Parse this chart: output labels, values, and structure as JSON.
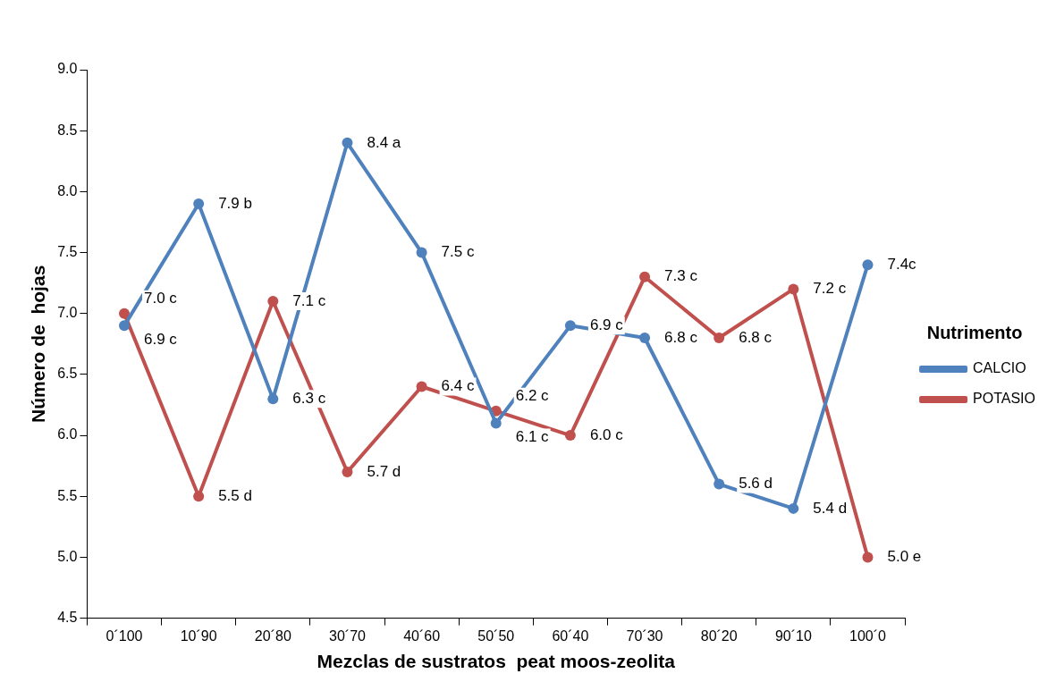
{
  "chart_data": {
    "type": "line",
    "xlabel": "Mezclas de sustratos  peat moos-zeolita",
    "ylabel": "Número de  hojas",
    "legend_title": "Nutrimento",
    "legend": "right",
    "marker": "circle",
    "line_style": "solid",
    "grid": false,
    "categories": [
      "0´100",
      "10´90",
      "20´80",
      "30´70",
      "40´60",
      "50´50",
      "60´40",
      "70´30",
      "80´20",
      "90´10",
      "100´0"
    ],
    "ylim": [
      4.5,
      9
    ],
    "yticks": [
      {
        "value": 4.5,
        "label": "4.5"
      },
      {
        "value": 5,
        "label": "5.0"
      },
      {
        "value": 5.5,
        "label": "5.5"
      },
      {
        "value": 6,
        "label": "6.0"
      },
      {
        "value": 6.5,
        "label": "6.5"
      },
      {
        "value": 7,
        "label": "7.0"
      },
      {
        "value": 7.5,
        "label": "7.5"
      },
      {
        "value": 8,
        "label": "8.0"
      },
      {
        "value": 8.5,
        "label": "8.5"
      },
      {
        "value": 9,
        "label": "9.0"
      }
    ],
    "series": [
      {
        "name": "CALCIO",
        "color": "#4f81bd",
        "values": [
          6.9,
          7.9,
          6.3,
          8.4,
          7.5,
          6.1,
          6.9,
          6.8,
          5.6,
          5.4,
          7.4
        ],
        "value_labels": [
          "6.9 c",
          "7.9 b",
          "6.3 c",
          "8.4 a",
          "7.5 c",
          "6.1 c",
          "6.9 c",
          "6.8 c",
          "5.6 d",
          "5.4 d",
          "7.4c"
        ]
      },
      {
        "name": "POTASIO",
        "color": "#c0504d",
        "values": [
          7.0,
          5.5,
          7.1,
          5.7,
          6.4,
          6.2,
          6.0,
          7.3,
          6.8,
          7.2,
          5.0
        ],
        "value_labels": [
          "7.0 c",
          "5.5 d",
          "7.1 c",
          "5.7 d",
          "6.4 c",
          "6.2 c",
          "6.0 c",
          "7.3 c",
          "6.8 c",
          "7.2 c",
          "5.0 e"
        ]
      }
    ]
  }
}
